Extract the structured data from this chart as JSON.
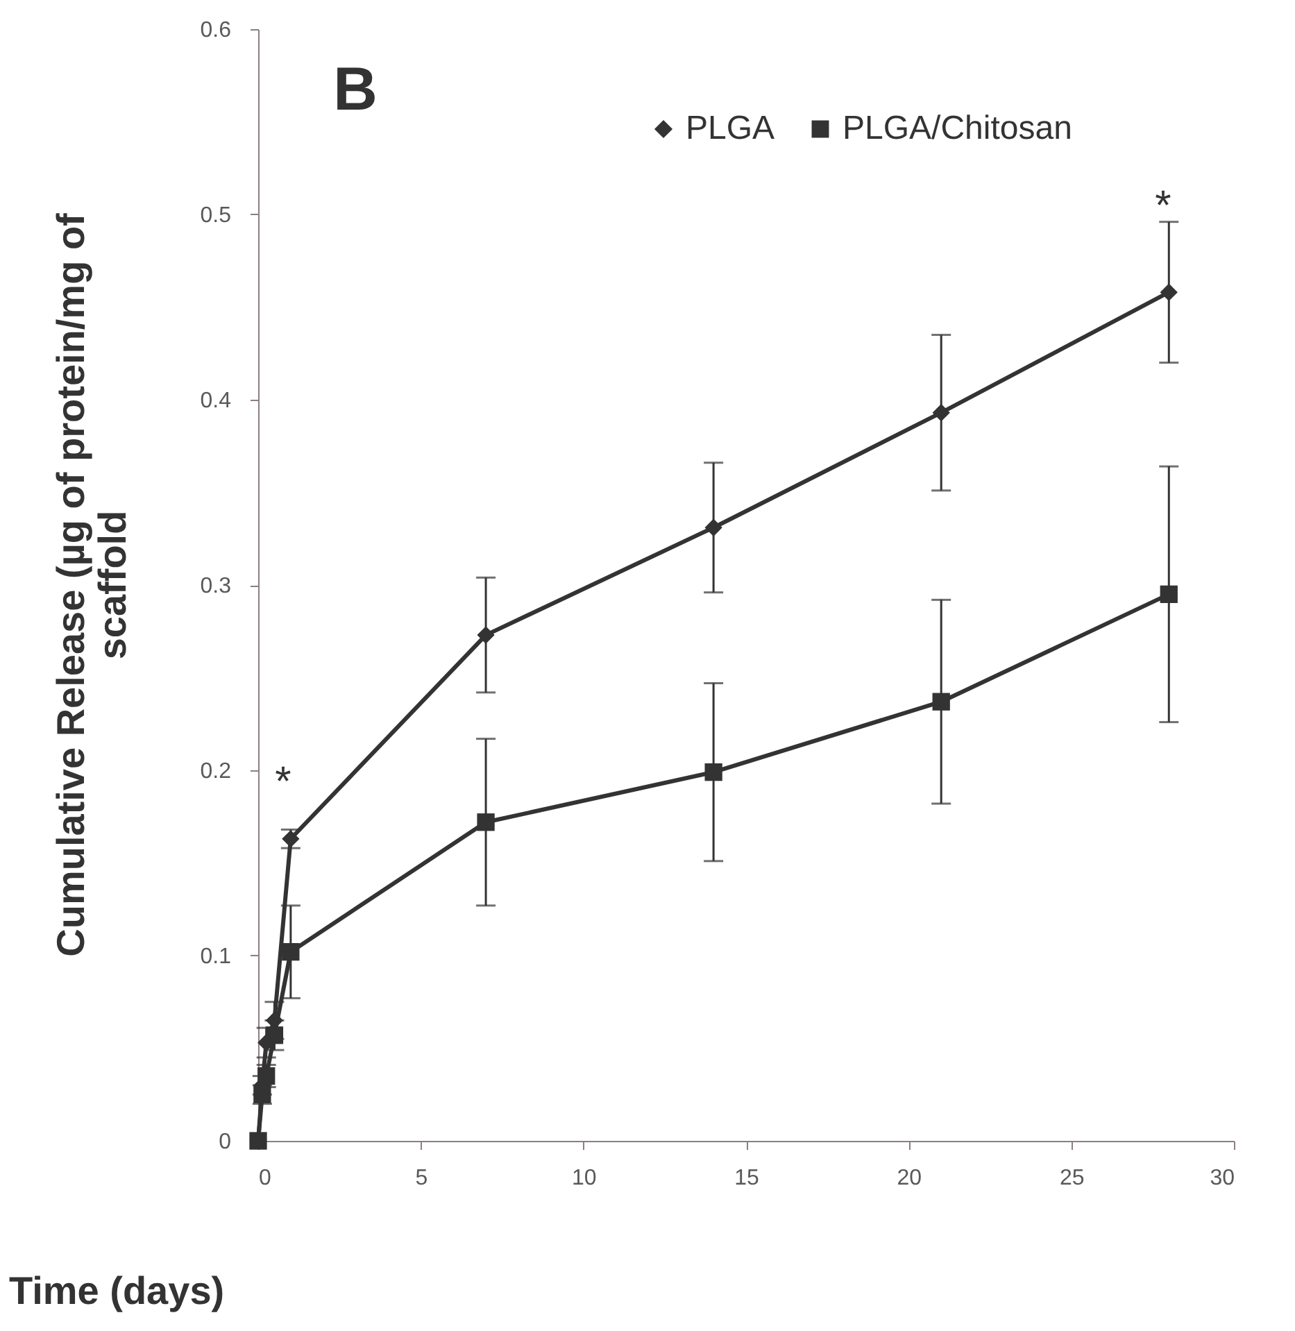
{
  "chart_data": {
    "type": "line",
    "xlabel": "Time (days)",
    "ylabel": "Cumulative Release (µg of protein/mg of scaffold",
    "x": [
      0,
      0.125,
      0.25,
      0.5,
      1,
      7,
      14,
      21,
      28
    ],
    "series": [
      {
        "name": "PLGA",
        "color": "#333333",
        "marker": "diamond",
        "values": [
          0,
          0.03,
          0.053,
          0.065,
          0.163,
          0.273,
          0.331,
          0.393,
          0.458
        ],
        "errors": [
          null,
          0.005,
          0.008,
          0.01,
          0.005,
          0.031,
          0.035,
          0.042,
          0.038
        ]
      },
      {
        "name": "PLGA/Chitosan",
        "color": "#333333",
        "marker": "square",
        "values": [
          0,
          0.025,
          0.035,
          0.057,
          0.102,
          0.172,
          0.199,
          0.237,
          0.295
        ],
        "errors": [
          null,
          0.005,
          0.006,
          0.008,
          0.025,
          0.045,
          0.048,
          0.055,
          0.069
        ]
      }
    ],
    "annotations": [
      "B",
      "*",
      "*"
    ],
    "xlim": [
      0,
      30
    ],
    "xticks": [
      0,
      5,
      10,
      15,
      20,
      25,
      30
    ],
    "ylim": [
      0,
      0.6
    ],
    "yticks": [
      0,
      0.1,
      0.2,
      0.3,
      0.4,
      0.5,
      0.6
    ],
    "grid": false,
    "legend": "top right",
    "line_style": "solid"
  }
}
